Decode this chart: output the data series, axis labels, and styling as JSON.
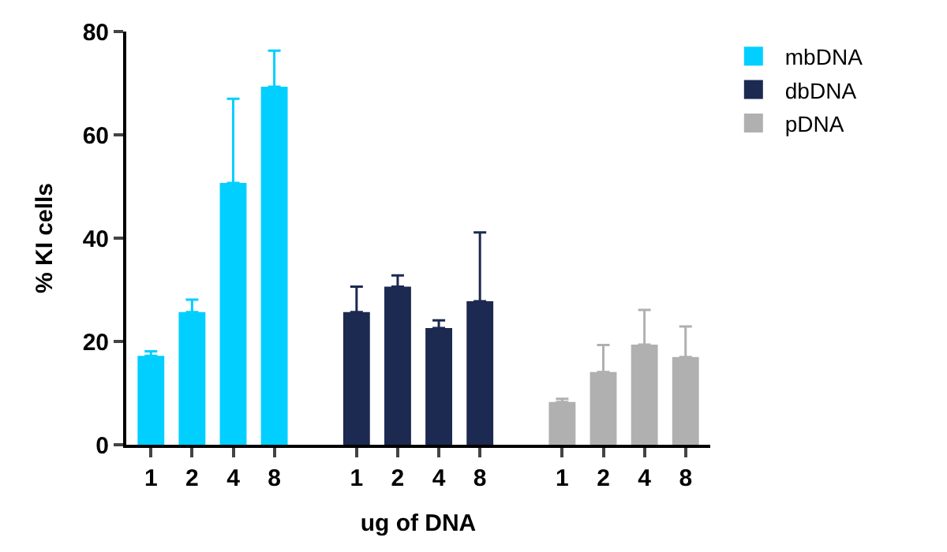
{
  "chart_data": {
    "type": "bar",
    "xlabel": "ug of DNA",
    "ylabel": "% KI cells",
    "categories": [
      "1",
      "2",
      "4",
      "8",
      null,
      "1",
      "2",
      "4",
      "8",
      null,
      "1",
      "2",
      "4",
      "8"
    ],
    "series": [
      {
        "name": "mbDNA",
        "color": "#00cfff",
        "values": [
          17.2,
          25.7,
          50.7,
          69.3,
          null,
          null,
          null,
          null,
          null,
          null,
          null,
          null,
          null,
          null
        ],
        "errors": [
          [
            17.2,
            18.1
          ],
          [
            25.7,
            28.1
          ],
          [
            50.7,
            67.0
          ],
          [
            69.3,
            76.3
          ],
          null,
          null,
          null,
          null,
          null,
          null,
          null,
          null,
          null,
          null
        ]
      },
      {
        "name": "dbDNA",
        "color": "#1c2951",
        "values": [
          null,
          null,
          null,
          null,
          null,
          25.7,
          30.6,
          22.6,
          27.8,
          null,
          null,
          null,
          null,
          null
        ],
        "errors": [
          null,
          null,
          null,
          null,
          null,
          [
            25.7,
            30.6
          ],
          [
            30.6,
            32.8
          ],
          [
            22.6,
            24.1
          ],
          [
            27.8,
            41.1
          ],
          null,
          null,
          null,
          null,
          null
        ]
      },
      {
        "name": "pDNA",
        "color": "#b0b0b0",
        "values": [
          null,
          null,
          null,
          null,
          null,
          null,
          null,
          null,
          null,
          null,
          8.3,
          14.1,
          19.4,
          17.0
        ],
        "errors": [
          null,
          null,
          null,
          null,
          null,
          null,
          null,
          null,
          null,
          null,
          [
            8.3,
            8.9
          ],
          [
            14.1,
            19.3
          ],
          [
            19.4,
            26.1
          ],
          [
            17.0,
            22.9
          ]
        ]
      }
    ],
    "ylim": [
      0,
      80
    ],
    "yticks": [
      0,
      20,
      40,
      60,
      80
    ],
    "grid": false,
    "legend": "top right"
  }
}
